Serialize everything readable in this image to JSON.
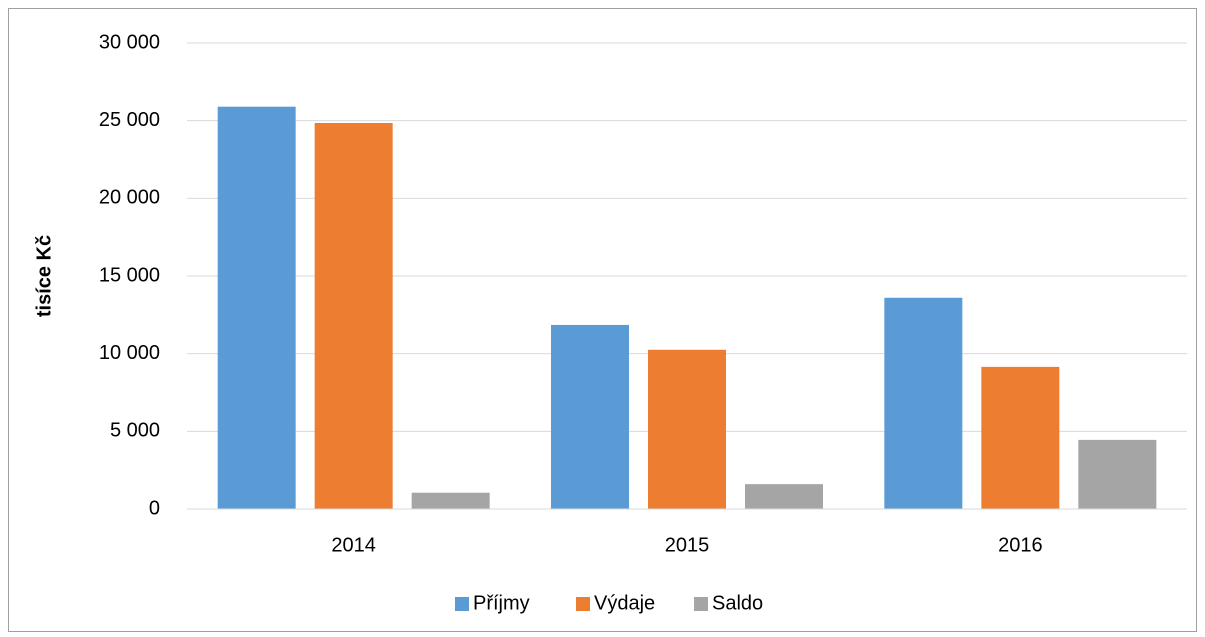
{
  "chart_data": {
    "type": "bar",
    "y_label": "tisíce Kč",
    "categories": [
      "2014",
      "2015",
      "2016"
    ],
    "series": [
      {
        "name": "Příjmy",
        "color": "#5b9bd5",
        "values": [
          25900,
          11850,
          13600
        ]
      },
      {
        "name": "Výdaje",
        "color": "#ed7d31",
        "values": [
          24850,
          10250,
          9150
        ]
      },
      {
        "name": "Saldo",
        "color": "#a5a5a5",
        "values": [
          1050,
          1600,
          4450
        ]
      }
    ],
    "ylim": [
      0,
      30000
    ],
    "yticks": [
      0,
      {
        "value": 5000,
        "label": "5 000"
      },
      {
        "value": 10000,
        "label": "10 000"
      },
      {
        "value": 15000,
        "label": "15 000"
      },
      {
        "value": 20000,
        "label": "20 000"
      },
      {
        "value": 25000,
        "label": "25 000"
      },
      {
        "value": 30000,
        "label": "30 000"
      }
    ],
    "grid": true,
    "legend": "bottom"
  }
}
